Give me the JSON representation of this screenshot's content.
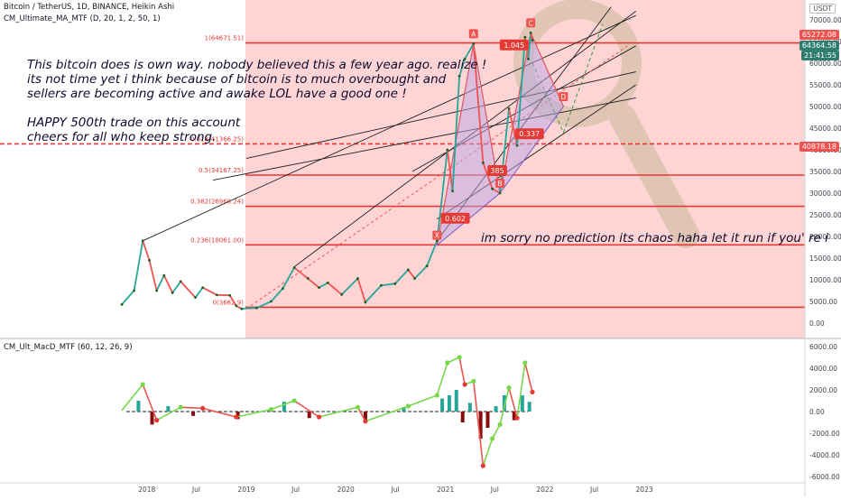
{
  "header": {
    "symbol_line": "Bitcoin / TetherUS, 1D, BINANCE, Heikin Ashi",
    "indicator_line": "CM_Ultimate_MA_MTF (D, 20, 1, 2, 50, 1)",
    "sub_indicator": "CM_Ult_MacD_MTF (60, 12, 26, 9)",
    "currency_badge": "USDT"
  },
  "price_badges": {
    "last": "65272.08",
    "bid": "64364.58",
    "countdown": "21:41:55",
    "level": "40878.18"
  },
  "notes": {
    "line1": "This bitcoin does is own way. nobody believed this a few year ago. realize !",
    "line2": "its not time yet i think because of bitcoin is to much overbought and",
    "line3": "sellers are becoming active and awake LOL have a good one !",
    "line4": "HAPPY 500th trade on this account",
    "line5": "cheers for all who keep strong.",
    "line6": "im sorry no prediction its chaos haha let it run if you' re i"
  },
  "colors": {
    "bull": "#26a69a",
    "bear": "#ef5350",
    "fib": "#e53935",
    "zone": "#ffc9c9",
    "magnifier": "#c8b99a"
  },
  "chart_data": [
    {
      "type": "line",
      "title": "",
      "symbol": "BTCUSDT",
      "x_ticks": [
        "2018",
        "Jul",
        "2019",
        "Jul",
        "2020",
        "Jul",
        "2021",
        "Jul",
        "2022",
        "Jul",
        "2023"
      ],
      "y_ticks": [
        "0.00",
        "5000.00",
        "10000.00",
        "15000.00",
        "20000.00",
        "25000.00",
        "30000.00",
        "35000.00",
        "40000.00",
        "45000.00",
        "50000.00",
        "55000.00",
        "60000.00",
        "65000.00",
        "70000.00"
      ],
      "ylim": [
        -2000,
        73000
      ],
      "close_series": [
        {
          "date": "2017-10-01",
          "price": 4300
        },
        {
          "date": "2017-11-15",
          "price": 7500
        },
        {
          "date": "2017-12-17",
          "price": 19000
        },
        {
          "date": "2018-01-10",
          "price": 14500
        },
        {
          "date": "2018-02-06",
          "price": 7500
        },
        {
          "date": "2018-03-05",
          "price": 11000
        },
        {
          "date": "2018-04-05",
          "price": 7000
        },
        {
          "date": "2018-05-05",
          "price": 9600
        },
        {
          "date": "2018-06-28",
          "price": 5900
        },
        {
          "date": "2018-07-25",
          "price": 8200
        },
        {
          "date": "2018-09-15",
          "price": 6500
        },
        {
          "date": "2018-11-01",
          "price": 6400
        },
        {
          "date": "2018-11-25",
          "price": 4000
        },
        {
          "date": "2018-12-15",
          "price": 3300
        },
        {
          "date": "2019-02-08",
          "price": 3500
        },
        {
          "date": "2019-04-02",
          "price": 5000
        },
        {
          "date": "2019-05-15",
          "price": 8000
        },
        {
          "date": "2019-06-26",
          "price": 12800
        },
        {
          "date": "2019-08-15",
          "price": 10300
        },
        {
          "date": "2019-09-25",
          "price": 8200
        },
        {
          "date": "2019-10-27",
          "price": 9300
        },
        {
          "date": "2019-12-17",
          "price": 6600
        },
        {
          "date": "2020-02-14",
          "price": 10300
        },
        {
          "date": "2020-03-13",
          "price": 4800
        },
        {
          "date": "2020-05-10",
          "price": 8700
        },
        {
          "date": "2020-06-30",
          "price": 9100
        },
        {
          "date": "2020-08-17",
          "price": 12300
        },
        {
          "date": "2020-09-10",
          "price": 10300
        },
        {
          "date": "2020-10-25",
          "price": 13200
        },
        {
          "date": "2020-12-01",
          "price": 19000
        },
        {
          "date": "2021-01-08",
          "price": 40000
        },
        {
          "date": "2021-01-27",
          "price": 30500
        },
        {
          "date": "2021-02-21",
          "price": 57000
        },
        {
          "date": "2021-03-13",
          "price": 61000
        },
        {
          "date": "2021-04-14",
          "price": 64500
        },
        {
          "date": "2021-05-19",
          "price": 37000
        },
        {
          "date": "2021-06-22",
          "price": 31000
        },
        {
          "date": "2021-07-20",
          "price": 30000
        },
        {
          "date": "2021-08-22",
          "price": 49500
        },
        {
          "date": "2021-09-21",
          "price": 41000
        },
        {
          "date": "2021-10-20",
          "price": 66000
        },
        {
          "date": "2021-11-01",
          "price": 61000
        },
        {
          "date": "2021-11-10",
          "price": 67000
        },
        {
          "date": "2021-11-16",
          "price": 65272
        }
      ],
      "fib_levels": [
        {
          "label": "1(64671.51)",
          "value": 64671.51
        },
        {
          "label": "0.618(41366.25)",
          "value": 41366.25
        },
        {
          "label": "0.5(34167.25)",
          "value": 34167.25
        },
        {
          "label": "0.382(26968.24)",
          "value": 26968.24
        },
        {
          "label": "0.236(18061.00)",
          "value": 18061.0
        },
        {
          "label": "0(3662.9)",
          "value": 3662.9
        }
      ],
      "pattern_points": [
        {
          "label": "X",
          "date": "2020-12-01",
          "price": 18000
        },
        {
          "label": "A",
          "date": "2021-04-14",
          "price": 64500
        },
        {
          "label": "B",
          "date": "2021-07-20",
          "price": 30000
        },
        {
          "label": "C",
          "date": "2021-11-10",
          "price": 67000
        },
        {
          "label": "D",
          "date": "2022-03-10",
          "price": 50000
        }
      ],
      "pattern_ratios": [
        {
          "label": "0.602",
          "date": "2021-02-06",
          "price": 24000
        },
        {
          "label": "385",
          "date": "2021-07-10",
          "price": 35000
        },
        {
          "label": "1.045",
          "date": "2021-09-10",
          "price": 64000
        },
        {
          "label": "0.337",
          "date": "2021-11-05",
          "price": 43500
        }
      ]
    },
    {
      "type": "bar",
      "title": "",
      "y_ticks": [
        "-6000.00",
        "-4000.00",
        "-2000.00",
        "0.00",
        "2000.00",
        "4000.00",
        "6000.00"
      ],
      "ylim": [
        -6200,
        6400
      ],
      "macd_line": [
        {
          "date": "2017-10-01",
          "value": 100
        },
        {
          "date": "2017-12-17",
          "value": 2500
        },
        {
          "date": "2018-02-06",
          "value": -800
        },
        {
          "date": "2018-05-05",
          "value": 400
        },
        {
          "date": "2018-07-25",
          "value": 300
        },
        {
          "date": "2018-11-25",
          "value": -500
        },
        {
          "date": "2019-04-02",
          "value": 200
        },
        {
          "date": "2019-06-26",
          "value": 1000
        },
        {
          "date": "2019-09-25",
          "value": -500
        },
        {
          "date": "2020-02-14",
          "value": 400
        },
        {
          "date": "2020-03-13",
          "value": -900
        },
        {
          "date": "2020-08-17",
          "value": 500
        },
        {
          "date": "2020-12-01",
          "value": 1500
        },
        {
          "date": "2021-01-08",
          "value": 4500
        },
        {
          "date": "2021-02-21",
          "value": 5000
        },
        {
          "date": "2021-03-13",
          "value": 2500
        },
        {
          "date": "2021-04-14",
          "value": 2800
        },
        {
          "date": "2021-05-19",
          "value": -5000
        },
        {
          "date": "2021-06-22",
          "value": -2500
        },
        {
          "date": "2021-07-20",
          "value": -1200
        },
        {
          "date": "2021-08-22",
          "value": 2200
        },
        {
          "date": "2021-09-21",
          "value": -600
        },
        {
          "date": "2021-10-20",
          "value": 4500
        },
        {
          "date": "2021-11-16",
          "value": 1800
        }
      ],
      "histogram": [
        {
          "date": "2017-12-01",
          "value": 1000
        },
        {
          "date": "2018-01-20",
          "value": -1200
        },
        {
          "date": "2018-03-20",
          "value": 500
        },
        {
          "date": "2018-06-20",
          "value": -400
        },
        {
          "date": "2018-12-01",
          "value": -700
        },
        {
          "date": "2019-05-20",
          "value": 900
        },
        {
          "date": "2019-08-20",
          "value": -600
        },
        {
          "date": "2020-03-13",
          "value": -1000
        },
        {
          "date": "2020-08-01",
          "value": 400
        },
        {
          "date": "2020-12-20",
          "value": 1200
        },
        {
          "date": "2021-01-15",
          "value": 1500
        },
        {
          "date": "2021-02-10",
          "value": 2000
        },
        {
          "date": "2021-03-05",
          "value": -1000
        },
        {
          "date": "2021-04-01",
          "value": 800
        },
        {
          "date": "2021-05-10",
          "value": -2500
        },
        {
          "date": "2021-06-05",
          "value": -1500
        },
        {
          "date": "2021-07-05",
          "value": 500
        },
        {
          "date": "2021-08-05",
          "value": 1500
        },
        {
          "date": "2021-09-10",
          "value": -800
        },
        {
          "date": "2021-10-10",
          "value": 1500
        },
        {
          "date": "2021-11-05",
          "value": 900
        }
      ]
    }
  ]
}
